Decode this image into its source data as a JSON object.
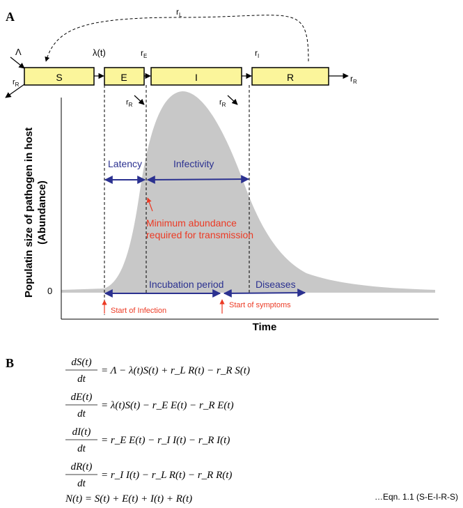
{
  "panel_a": {
    "label": "A",
    "compartments": {
      "s": "S",
      "e": "E",
      "i": "I",
      "r": "R"
    },
    "rates": {
      "lambda_in": "Λ",
      "lambda_t": "λ(t)",
      "r_base": "r",
      "sub_L": "L",
      "sub_E": "E",
      "sub_I": "I",
      "sub_R": "R"
    },
    "ylabel_line1": "Populatin size of pathogen in host",
    "ylabel_line2": "(Abundance)",
    "xlabel": "Time",
    "zero_tick": "0",
    "latency": "Latency",
    "infectivity": "Infectivity",
    "min_abundance_line1": "Minimum abundance",
    "min_abundance_line2": "required for transmission",
    "incubation": "Incubation period",
    "diseases": "Diseases",
    "start_infection": "Start of Infection",
    "start_symptoms": "Start of symptoms",
    "colors": {
      "box_fill": "#fbf59b",
      "curve_fill": "#c8c8c8",
      "blue": "#2b3190",
      "red": "#ec3a24"
    }
  },
  "panel_b": {
    "label": "B",
    "eq_s": {
      "num": "dS(t)",
      "den": "dt",
      "rhs": "= Λ − λ(t)S(t) + r_L R(t) − r_R S(t)"
    },
    "eq_e": {
      "num": "dE(t)",
      "den": "dt",
      "rhs": "= λ(t)S(t) − r_E E(t) − r_R E(t)"
    },
    "eq_i": {
      "num": "dI(t)",
      "den": "dt",
      "rhs": "= r_E E(t) − r_I I(t) − r_R I(t)"
    },
    "eq_r": {
      "num": "dR(t)",
      "den": "dt",
      "rhs": "= r_I I(t) − r_L R(t) − r_R R(t)"
    },
    "eq_n": "N(t) = S(t) + E(t) + I(t) + R(t)",
    "eqn_ref": "…Eqn. 1.1 (S-E-I-R-S)"
  }
}
